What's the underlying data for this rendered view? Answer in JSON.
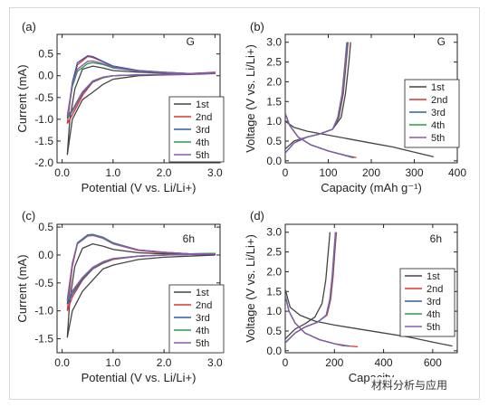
{
  "watermark": "材料分析与应用",
  "chart_data": [
    {
      "panel": "(a)",
      "corner_label": "G",
      "type": "line",
      "xlabel": "Potential (V vs. Li/Li+)",
      "ylabel": "Current (mA)",
      "xlim": [
        -0.1,
        3.1
      ],
      "ylim": [
        -2.0,
        0.95
      ],
      "xticks": [
        "0.0",
        "1.0",
        "2.0",
        "3.0"
      ],
      "yticks": [
        "-2.0",
        "-1.5",
        "-1.0",
        "-0.5",
        "0.0",
        "0.5"
      ],
      "legend_position": "lower-right",
      "series": [
        {
          "name": "1st",
          "color": "#444444",
          "x": [
            0.1,
            0.2,
            0.4,
            0.6,
            0.8,
            1.0,
            1.5,
            2.0,
            2.5,
            3.0,
            2.5,
            2.0,
            1.5,
            1.0,
            0.8,
            0.6,
            0.4,
            0.25,
            0.15,
            0.1
          ],
          "y": [
            -1.82,
            -1.0,
            -0.55,
            -0.38,
            -0.2,
            -0.08,
            0.0,
            0.02,
            0.03,
            0.05,
            0.04,
            0.06,
            0.08,
            0.12,
            0.18,
            0.22,
            0.15,
            -0.3,
            -1.0,
            -1.82
          ]
        },
        {
          "name": "2nd",
          "color": "#e03030",
          "x": [
            0.1,
            0.2,
            0.4,
            0.6,
            0.8,
            1.0,
            1.5,
            2.0,
            2.5,
            3.0,
            2.5,
            2.0,
            1.5,
            1.0,
            0.8,
            0.6,
            0.5,
            0.3,
            0.2,
            0.1
          ],
          "y": [
            -1.1,
            -0.9,
            -0.45,
            -0.15,
            -0.05,
            0.0,
            0.02,
            0.03,
            0.04,
            0.08,
            0.05,
            0.08,
            0.12,
            0.22,
            0.32,
            0.42,
            0.44,
            0.25,
            -0.2,
            -1.1
          ]
        },
        {
          "name": "3rd",
          "color": "#2e5fa8",
          "x": [
            0.1,
            0.2,
            0.4,
            0.6,
            0.8,
            1.0,
            1.5,
            2.0,
            2.5,
            3.0,
            2.5,
            2.0,
            1.5,
            1.0,
            0.8,
            0.6,
            0.5,
            0.3,
            0.2,
            0.1
          ],
          "y": [
            -0.98,
            -0.82,
            -0.4,
            -0.14,
            -0.04,
            0.0,
            0.02,
            0.03,
            0.04,
            0.07,
            0.05,
            0.08,
            0.12,
            0.22,
            0.33,
            0.44,
            0.46,
            0.3,
            -0.15,
            -0.98
          ]
        },
        {
          "name": "4th",
          "color": "#2e9a4a",
          "x": [
            0.1,
            0.2,
            0.4,
            0.6,
            0.8,
            1.0,
            1.5,
            2.0,
            2.5,
            3.0,
            2.5,
            2.0,
            1.5,
            1.0,
            0.8,
            0.6,
            0.5,
            0.3,
            0.2,
            0.1
          ],
          "y": [
            -0.95,
            -0.8,
            -0.38,
            -0.13,
            -0.04,
            0.0,
            0.02,
            0.03,
            0.04,
            0.06,
            0.05,
            0.07,
            0.1,
            0.18,
            0.26,
            0.3,
            0.28,
            0.1,
            -0.25,
            -0.95
          ]
        },
        {
          "name": "5th",
          "color": "#8a5ab0",
          "x": [
            0.1,
            0.2,
            0.4,
            0.6,
            0.8,
            1.0,
            1.5,
            2.0,
            2.5,
            3.0,
            2.5,
            2.0,
            1.5,
            1.0,
            0.8,
            0.6,
            0.5,
            0.3,
            0.2,
            0.1
          ],
          "y": [
            -0.92,
            -0.78,
            -0.37,
            -0.12,
            -0.03,
            0.0,
            0.02,
            0.03,
            0.04,
            0.06,
            0.05,
            0.07,
            0.1,
            0.2,
            0.28,
            0.34,
            0.33,
            0.15,
            -0.2,
            -0.92
          ]
        }
      ]
    },
    {
      "panel": "(b)",
      "corner_label": "G",
      "type": "line",
      "xlabel": "Capacity (mAh g⁻¹)",
      "ylabel": "Voltage (V vs. Li/Li+)",
      "xlim": [
        0,
        400
      ],
      "ylim": [
        -0.05,
        3.2
      ],
      "xticks": [
        "0",
        "100",
        "200",
        "300",
        "400"
      ],
      "yticks": [
        "0.0",
        "0.5",
        "1.0",
        "1.5",
        "2.0",
        "2.5",
        "3.0"
      ],
      "legend_position": "right",
      "series": [
        {
          "name": "1st",
          "color": "#444444",
          "x": [
            0,
            20,
            50,
            100,
            150,
            200,
            250,
            300,
            345,
            null,
            0,
            20,
            50,
            80,
            110,
            130,
            140,
            148,
            152
          ],
          "y": [
            1.0,
            0.85,
            0.75,
            0.65,
            0.55,
            0.45,
            0.35,
            0.22,
            0.1,
            null,
            0.3,
            0.5,
            0.6,
            0.68,
            0.8,
            1.1,
            1.7,
            2.5,
            3.0
          ]
        },
        {
          "name": "2nd",
          "color": "#e03030",
          "x": [
            0,
            10,
            30,
            60,
            100,
            140,
            165,
            null,
            0,
            20,
            50,
            80,
            110,
            125,
            135,
            142,
            146
          ],
          "y": [
            1.2,
            0.9,
            0.6,
            0.4,
            0.25,
            0.14,
            0.08,
            null,
            0.2,
            0.45,
            0.6,
            0.68,
            0.8,
            1.1,
            1.7,
            2.5,
            3.0
          ]
        },
        {
          "name": "3rd",
          "color": "#2e5fa8",
          "x": [
            0,
            10,
            30,
            60,
            100,
            140,
            160,
            null,
            0,
            20,
            50,
            80,
            110,
            124,
            134,
            141,
            145
          ],
          "y": [
            1.2,
            0.9,
            0.6,
            0.4,
            0.25,
            0.14,
            0.08,
            null,
            0.2,
            0.45,
            0.6,
            0.68,
            0.8,
            1.1,
            1.7,
            2.5,
            3.0
          ]
        },
        {
          "name": "4th",
          "color": "#2e9a4a",
          "x": [
            0,
            10,
            30,
            60,
            100,
            138,
            158,
            null,
            0,
            20,
            50,
            80,
            110,
            123,
            133,
            140,
            144
          ],
          "y": [
            1.2,
            0.9,
            0.6,
            0.4,
            0.25,
            0.14,
            0.08,
            null,
            0.2,
            0.45,
            0.6,
            0.68,
            0.8,
            1.1,
            1.7,
            2.5,
            3.0
          ]
        },
        {
          "name": "5th",
          "color": "#8a5ab0",
          "x": [
            0,
            10,
            30,
            60,
            100,
            137,
            156,
            null,
            0,
            20,
            50,
            80,
            110,
            122,
            132,
            139,
            143
          ],
          "y": [
            1.2,
            0.9,
            0.6,
            0.4,
            0.25,
            0.14,
            0.08,
            null,
            0.2,
            0.45,
            0.6,
            0.68,
            0.8,
            1.1,
            1.7,
            2.5,
            3.0
          ]
        }
      ]
    },
    {
      "panel": "(c)",
      "corner_label": "6h",
      "type": "line",
      "xlabel": "Potential (V vs. Li/Li+)",
      "ylabel": "Current (mA)",
      "xlim": [
        -0.1,
        3.1
      ],
      "ylim": [
        -1.75,
        0.55
      ],
      "xticks": [
        "0.0",
        "1.0",
        "2.0",
        "3.0"
      ],
      "yticks": [
        "-1.5",
        "-1.0",
        "-0.5",
        "0.0",
        "0.5"
      ],
      "legend_position": "lower-right",
      "series": [
        {
          "name": "1st",
          "color": "#444444",
          "x": [
            0.1,
            0.2,
            0.4,
            0.6,
            0.8,
            1.0,
            1.5,
            2.0,
            2.5,
            3.0,
            2.5,
            2.0,
            1.5,
            1.0,
            0.8,
            0.6,
            0.4,
            0.25,
            0.15,
            0.1
          ],
          "y": [
            -1.48,
            -1.0,
            -0.65,
            -0.45,
            -0.25,
            -0.18,
            -0.08,
            -0.04,
            -0.02,
            0.0,
            0.01,
            0.02,
            0.04,
            0.1,
            0.16,
            0.2,
            0.12,
            -0.2,
            -0.8,
            -1.48
          ]
        },
        {
          "name": "2nd",
          "color": "#e03030",
          "x": [
            0.1,
            0.2,
            0.4,
            0.6,
            0.8,
            1.0,
            1.5,
            2.0,
            2.5,
            3.0,
            2.5,
            2.0,
            1.5,
            1.0,
            0.8,
            0.6,
            0.5,
            0.3,
            0.2,
            0.1
          ],
          "y": [
            -1.0,
            -0.75,
            -0.45,
            -0.25,
            -0.15,
            -0.08,
            -0.02,
            0.0,
            0.01,
            0.02,
            0.02,
            0.04,
            0.08,
            0.2,
            0.3,
            0.35,
            0.34,
            0.2,
            -0.2,
            -1.0
          ]
        },
        {
          "name": "3rd",
          "color": "#2e5fa8",
          "x": [
            0.1,
            0.2,
            0.4,
            0.6,
            0.8,
            1.0,
            1.5,
            2.0,
            2.5,
            3.0,
            2.5,
            2.0,
            1.5,
            1.0,
            0.8,
            0.6,
            0.5,
            0.3,
            0.2,
            0.1
          ],
          "y": [
            -0.88,
            -0.7,
            -0.43,
            -0.24,
            -0.14,
            -0.07,
            -0.02,
            0.0,
            0.01,
            0.03,
            0.02,
            0.05,
            0.09,
            0.22,
            0.32,
            0.37,
            0.36,
            0.22,
            -0.15,
            -0.88
          ]
        },
        {
          "name": "4th",
          "color": "#2e9a4a",
          "x": [
            0.1,
            0.2,
            0.4,
            0.6,
            0.8,
            1.0,
            1.5,
            2.0,
            2.5,
            3.0,
            2.5,
            2.0,
            1.5,
            1.0,
            0.8,
            0.6,
            0.5,
            0.3,
            0.2,
            0.1
          ],
          "y": [
            -0.82,
            -0.66,
            -0.41,
            -0.23,
            -0.13,
            -0.07,
            -0.02,
            0.0,
            0.01,
            0.03,
            0.02,
            0.05,
            0.09,
            0.21,
            0.31,
            0.36,
            0.35,
            0.21,
            -0.15,
            -0.82
          ]
        },
        {
          "name": "5th",
          "color": "#8a5ab0",
          "x": [
            0.1,
            0.2,
            0.4,
            0.6,
            0.8,
            1.0,
            1.5,
            2.0,
            2.5,
            3.0,
            2.5,
            2.0,
            1.5,
            1.0,
            0.8,
            0.6,
            0.5,
            0.3,
            0.2,
            0.1
          ],
          "y": [
            -0.8,
            -0.64,
            -0.4,
            -0.22,
            -0.12,
            -0.06,
            -0.02,
            0.0,
            0.01,
            0.02,
            0.02,
            0.05,
            0.09,
            0.2,
            0.3,
            0.35,
            0.34,
            0.2,
            -0.15,
            -0.8
          ]
        }
      ]
    },
    {
      "panel": "(d)",
      "corner_label": "6h",
      "type": "line",
      "xlabel": "Capacity",
      "ylabel": "Voltage (V vs. Li/Li+)",
      "xlim": [
        0,
        700
      ],
      "ylim": [
        -0.05,
        3.2
      ],
      "xticks": [
        "0",
        "200",
        "400",
        "600"
      ],
      "yticks": [
        "0.0",
        "0.5",
        "1.0",
        "1.5",
        "2.0",
        "2.5",
        "3.0"
      ],
      "legend_position": "right",
      "series": [
        {
          "name": "1st",
          "color": "#444444",
          "x": [
            0,
            20,
            60,
            120,
            200,
            300,
            400,
            500,
            600,
            680,
            null,
            0,
            40,
            80,
            120,
            150,
            165,
            175,
            182
          ],
          "y": [
            1.55,
            1.1,
            0.9,
            0.75,
            0.65,
            0.55,
            0.45,
            0.35,
            0.22,
            0.12,
            null,
            0.3,
            0.55,
            0.68,
            0.85,
            1.2,
            1.8,
            2.5,
            3.0
          ]
        },
        {
          "name": "2nd",
          "color": "#e03030",
          "x": [
            0,
            15,
            40,
            80,
            140,
            200,
            260,
            295,
            null,
            0,
            40,
            80,
            130,
            170,
            185,
            195,
            203,
            208
          ],
          "y": [
            1.4,
            1.0,
            0.7,
            0.45,
            0.28,
            0.18,
            0.12,
            0.1,
            null,
            0.2,
            0.45,
            0.6,
            0.72,
            0.9,
            1.3,
            1.9,
            2.6,
            3.0
          ]
        },
        {
          "name": "3rd",
          "color": "#2e5fa8",
          "x": [
            0,
            15,
            40,
            80,
            140,
            200,
            240,
            260,
            null,
            0,
            40,
            80,
            130,
            168,
            183,
            193,
            201,
            206
          ],
          "y": [
            1.4,
            1.0,
            0.7,
            0.45,
            0.28,
            0.18,
            0.13,
            0.12,
            null,
            0.2,
            0.45,
            0.6,
            0.72,
            0.9,
            1.3,
            1.9,
            2.6,
            3.0
          ]
        },
        {
          "name": "4th",
          "color": "#2e9a4a",
          "x": [
            0,
            15,
            40,
            80,
            140,
            200,
            235,
            255,
            null,
            0,
            40,
            80,
            130,
            167,
            182,
            192,
            200,
            205
          ],
          "y": [
            1.4,
            1.0,
            0.7,
            0.45,
            0.28,
            0.18,
            0.13,
            0.12,
            null,
            0.2,
            0.45,
            0.6,
            0.72,
            0.9,
            1.3,
            1.9,
            2.6,
            3.0
          ]
        },
        {
          "name": "5th",
          "color": "#8a5ab0",
          "x": [
            0,
            15,
            40,
            80,
            140,
            200,
            232,
            250,
            null,
            0,
            40,
            80,
            130,
            166,
            181,
            191,
            199,
            204
          ],
          "y": [
            1.4,
            1.0,
            0.7,
            0.45,
            0.28,
            0.18,
            0.13,
            0.12,
            null,
            0.2,
            0.45,
            0.6,
            0.72,
            0.9,
            1.3,
            1.9,
            2.6,
            3.0
          ]
        }
      ]
    }
  ]
}
